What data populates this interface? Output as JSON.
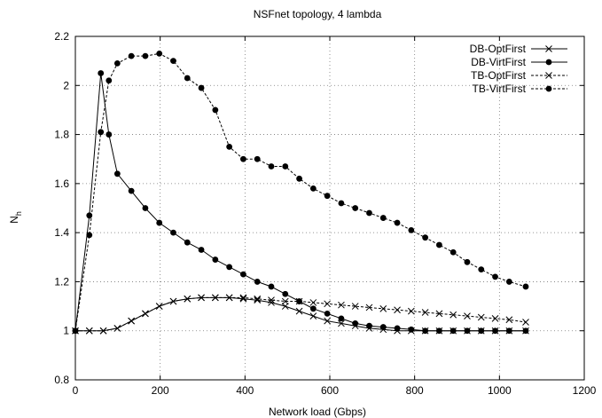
{
  "chart_data": {
    "type": "line",
    "title": "NSFnet topology, 4 lambda",
    "xlabel": "Network load (Gbps)",
    "ylabel": "N",
    "ylabel_sub": "h",
    "xlim": [
      0,
      1200
    ],
    "ylim": [
      0.8,
      2.2
    ],
    "xticks": [
      0,
      200,
      400,
      600,
      800,
      1000,
      1200
    ],
    "yticks": [
      0.8,
      1,
      1.2,
      1.4,
      1.6,
      1.8,
      2,
      2.2
    ],
    "grid": true,
    "legend_position": "top-right",
    "series": [
      {
        "name": "DB-OptFirst",
        "marker": "x",
        "dash": "solid",
        "x": [
          0,
          33,
          66,
          99,
          132,
          165,
          198,
          231,
          264,
          297,
          330,
          363,
          396,
          429,
          462,
          495,
          528,
          561,
          594,
          627,
          660,
          693,
          726,
          759,
          792,
          825,
          858,
          891,
          924,
          957,
          990,
          1023,
          1062
        ],
        "y": [
          1.0,
          1.0,
          1.0,
          1.01,
          1.04,
          1.07,
          1.1,
          1.12,
          1.13,
          1.135,
          1.135,
          1.135,
          1.13,
          1.125,
          1.115,
          1.1,
          1.08,
          1.06,
          1.04,
          1.03,
          1.02,
          1.01,
          1.005,
          1.0,
          1.0,
          1.0,
          1.0,
          1.0,
          1.0,
          1.0,
          1.0,
          1.0,
          1.0
        ]
      },
      {
        "name": "DB-VirtFirst",
        "marker": "circle",
        "dash": "solid",
        "x": [
          0,
          33,
          60,
          79,
          99,
          132,
          165,
          198,
          231,
          264,
          297,
          330,
          363,
          396,
          429,
          462,
          495,
          528,
          561,
          594,
          627,
          660,
          693,
          726,
          759,
          792,
          825,
          858,
          891,
          924,
          957,
          990,
          1023,
          1062
        ],
        "y": [
          1.0,
          1.47,
          2.05,
          1.8,
          1.64,
          1.57,
          1.5,
          1.44,
          1.4,
          1.36,
          1.33,
          1.29,
          1.26,
          1.23,
          1.2,
          1.18,
          1.15,
          1.12,
          1.09,
          1.07,
          1.05,
          1.03,
          1.02,
          1.015,
          1.01,
          1.005,
          1.0,
          1.0,
          1.0,
          1.0,
          1.0,
          1.0,
          1.0,
          1.0
        ]
      },
      {
        "name": "TB-OptFirst",
        "marker": "x",
        "dash": "dashed",
        "x": [
          0,
          33,
          66,
          99,
          132,
          165,
          198,
          231,
          264,
          297,
          330,
          363,
          396,
          429,
          462,
          495,
          528,
          561,
          594,
          627,
          660,
          693,
          726,
          759,
          792,
          825,
          858,
          891,
          924,
          957,
          990,
          1023,
          1062
        ],
        "y": [
          1.0,
          1.0,
          1.0,
          1.01,
          1.04,
          1.07,
          1.1,
          1.12,
          1.13,
          1.135,
          1.135,
          1.135,
          1.135,
          1.13,
          1.125,
          1.12,
          1.12,
          1.115,
          1.11,
          1.105,
          1.1,
          1.095,
          1.09,
          1.085,
          1.08,
          1.075,
          1.07,
          1.065,
          1.06,
          1.055,
          1.05,
          1.045,
          1.035
        ]
      },
      {
        "name": "TB-VirtFirst",
        "marker": "circle",
        "dash": "dashed",
        "x": [
          0,
          33,
          60,
          79,
          99,
          132,
          165,
          198,
          231,
          264,
          297,
          330,
          363,
          396,
          429,
          462,
          495,
          528,
          561,
          594,
          627,
          660,
          693,
          726,
          759,
          792,
          825,
          858,
          891,
          924,
          957,
          990,
          1023,
          1062
        ],
        "y": [
          1.0,
          1.39,
          1.81,
          2.02,
          2.09,
          2.12,
          2.12,
          2.13,
          2.1,
          2.03,
          1.99,
          1.9,
          1.75,
          1.7,
          1.7,
          1.67,
          1.67,
          1.62,
          1.58,
          1.55,
          1.52,
          1.5,
          1.48,
          1.46,
          1.44,
          1.41,
          1.38,
          1.35,
          1.32,
          1.28,
          1.25,
          1.22,
          1.2,
          1.18
        ]
      }
    ]
  }
}
